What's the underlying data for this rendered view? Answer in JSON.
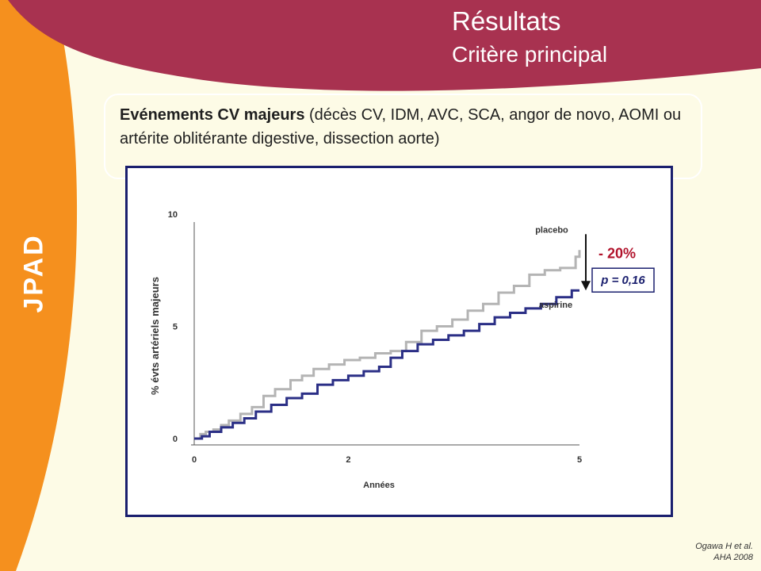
{
  "header": {
    "title": "Résultats",
    "subtitle": "Critère principal",
    "color": "#a83250"
  },
  "brand": {
    "label": "JPAD",
    "color": "#f5901e"
  },
  "endpoint": {
    "bold": "Evénements CV majeurs",
    "rest": " (décès CV, IDM, AVC, SCA, angor de novo, AOMI ou artérite oblitérante digestive, dissection aorte)"
  },
  "annotations": {
    "reduction": "- 20%",
    "pvalue": "p = 0,16",
    "reduction_color": "#b1122b"
  },
  "reference": {
    "line1": "Ogawa H et al.",
    "line2": "AHA 2008"
  },
  "chart_data": {
    "type": "line",
    "ylabel": "% évts artériels majeurs",
    "xlabel": "Années",
    "xlim": [
      0,
      5
    ],
    "ylim": [
      0,
      10
    ],
    "xticks": [
      {
        "value": 0,
        "label": "0"
      },
      {
        "value": 2,
        "label": "2"
      },
      {
        "value": 5,
        "label": "5"
      }
    ],
    "yticks": [
      {
        "value": 0,
        "label": "0"
      },
      {
        "value": 5,
        "label": "5"
      },
      {
        "value": 10,
        "label": "10"
      }
    ],
    "series": [
      {
        "name": "placebo",
        "color": "#b4b4b4",
        "points": [
          [
            0,
            0
          ],
          [
            0.08,
            0.2
          ],
          [
            0.15,
            0.3
          ],
          [
            0.25,
            0.4
          ],
          [
            0.35,
            0.6
          ],
          [
            0.45,
            0.8
          ],
          [
            0.6,
            1.1
          ],
          [
            0.75,
            1.4
          ],
          [
            0.9,
            1.9
          ],
          [
            1.05,
            2.2
          ],
          [
            1.25,
            2.6
          ],
          [
            1.4,
            2.8
          ],
          [
            1.55,
            3.1
          ],
          [
            1.75,
            3.3
          ],
          [
            1.95,
            3.5
          ],
          [
            2.15,
            3.6
          ],
          [
            2.35,
            3.8
          ],
          [
            2.55,
            3.9
          ],
          [
            2.75,
            4.3
          ],
          [
            2.95,
            4.8
          ],
          [
            3.15,
            5.0
          ],
          [
            3.35,
            5.3
          ],
          [
            3.55,
            5.7
          ],
          [
            3.75,
            6.0
          ],
          [
            3.95,
            6.5
          ],
          [
            4.15,
            6.8
          ],
          [
            4.35,
            7.3
          ],
          [
            4.55,
            7.5
          ],
          [
            4.75,
            7.6
          ],
          [
            4.95,
            8.1
          ],
          [
            5.0,
            8.4
          ]
        ]
      },
      {
        "name": "aspirine",
        "color": "#2b2f86",
        "points": [
          [
            0,
            0
          ],
          [
            0.1,
            0.1
          ],
          [
            0.2,
            0.3
          ],
          [
            0.35,
            0.5
          ],
          [
            0.5,
            0.7
          ],
          [
            0.65,
            0.9
          ],
          [
            0.8,
            1.2
          ],
          [
            1.0,
            1.5
          ],
          [
            1.2,
            1.8
          ],
          [
            1.4,
            2.0
          ],
          [
            1.6,
            2.4
          ],
          [
            1.8,
            2.6
          ],
          [
            2.0,
            2.8
          ],
          [
            2.2,
            3.0
          ],
          [
            2.4,
            3.2
          ],
          [
            2.55,
            3.6
          ],
          [
            2.7,
            3.9
          ],
          [
            2.9,
            4.2
          ],
          [
            3.1,
            4.4
          ],
          [
            3.3,
            4.6
          ],
          [
            3.5,
            4.8
          ],
          [
            3.7,
            5.1
          ],
          [
            3.9,
            5.4
          ],
          [
            4.1,
            5.6
          ],
          [
            4.3,
            5.8
          ],
          [
            4.5,
            6.0
          ],
          [
            4.7,
            6.3
          ],
          [
            4.9,
            6.6
          ],
          [
            5.0,
            6.6
          ]
        ]
      }
    ]
  }
}
